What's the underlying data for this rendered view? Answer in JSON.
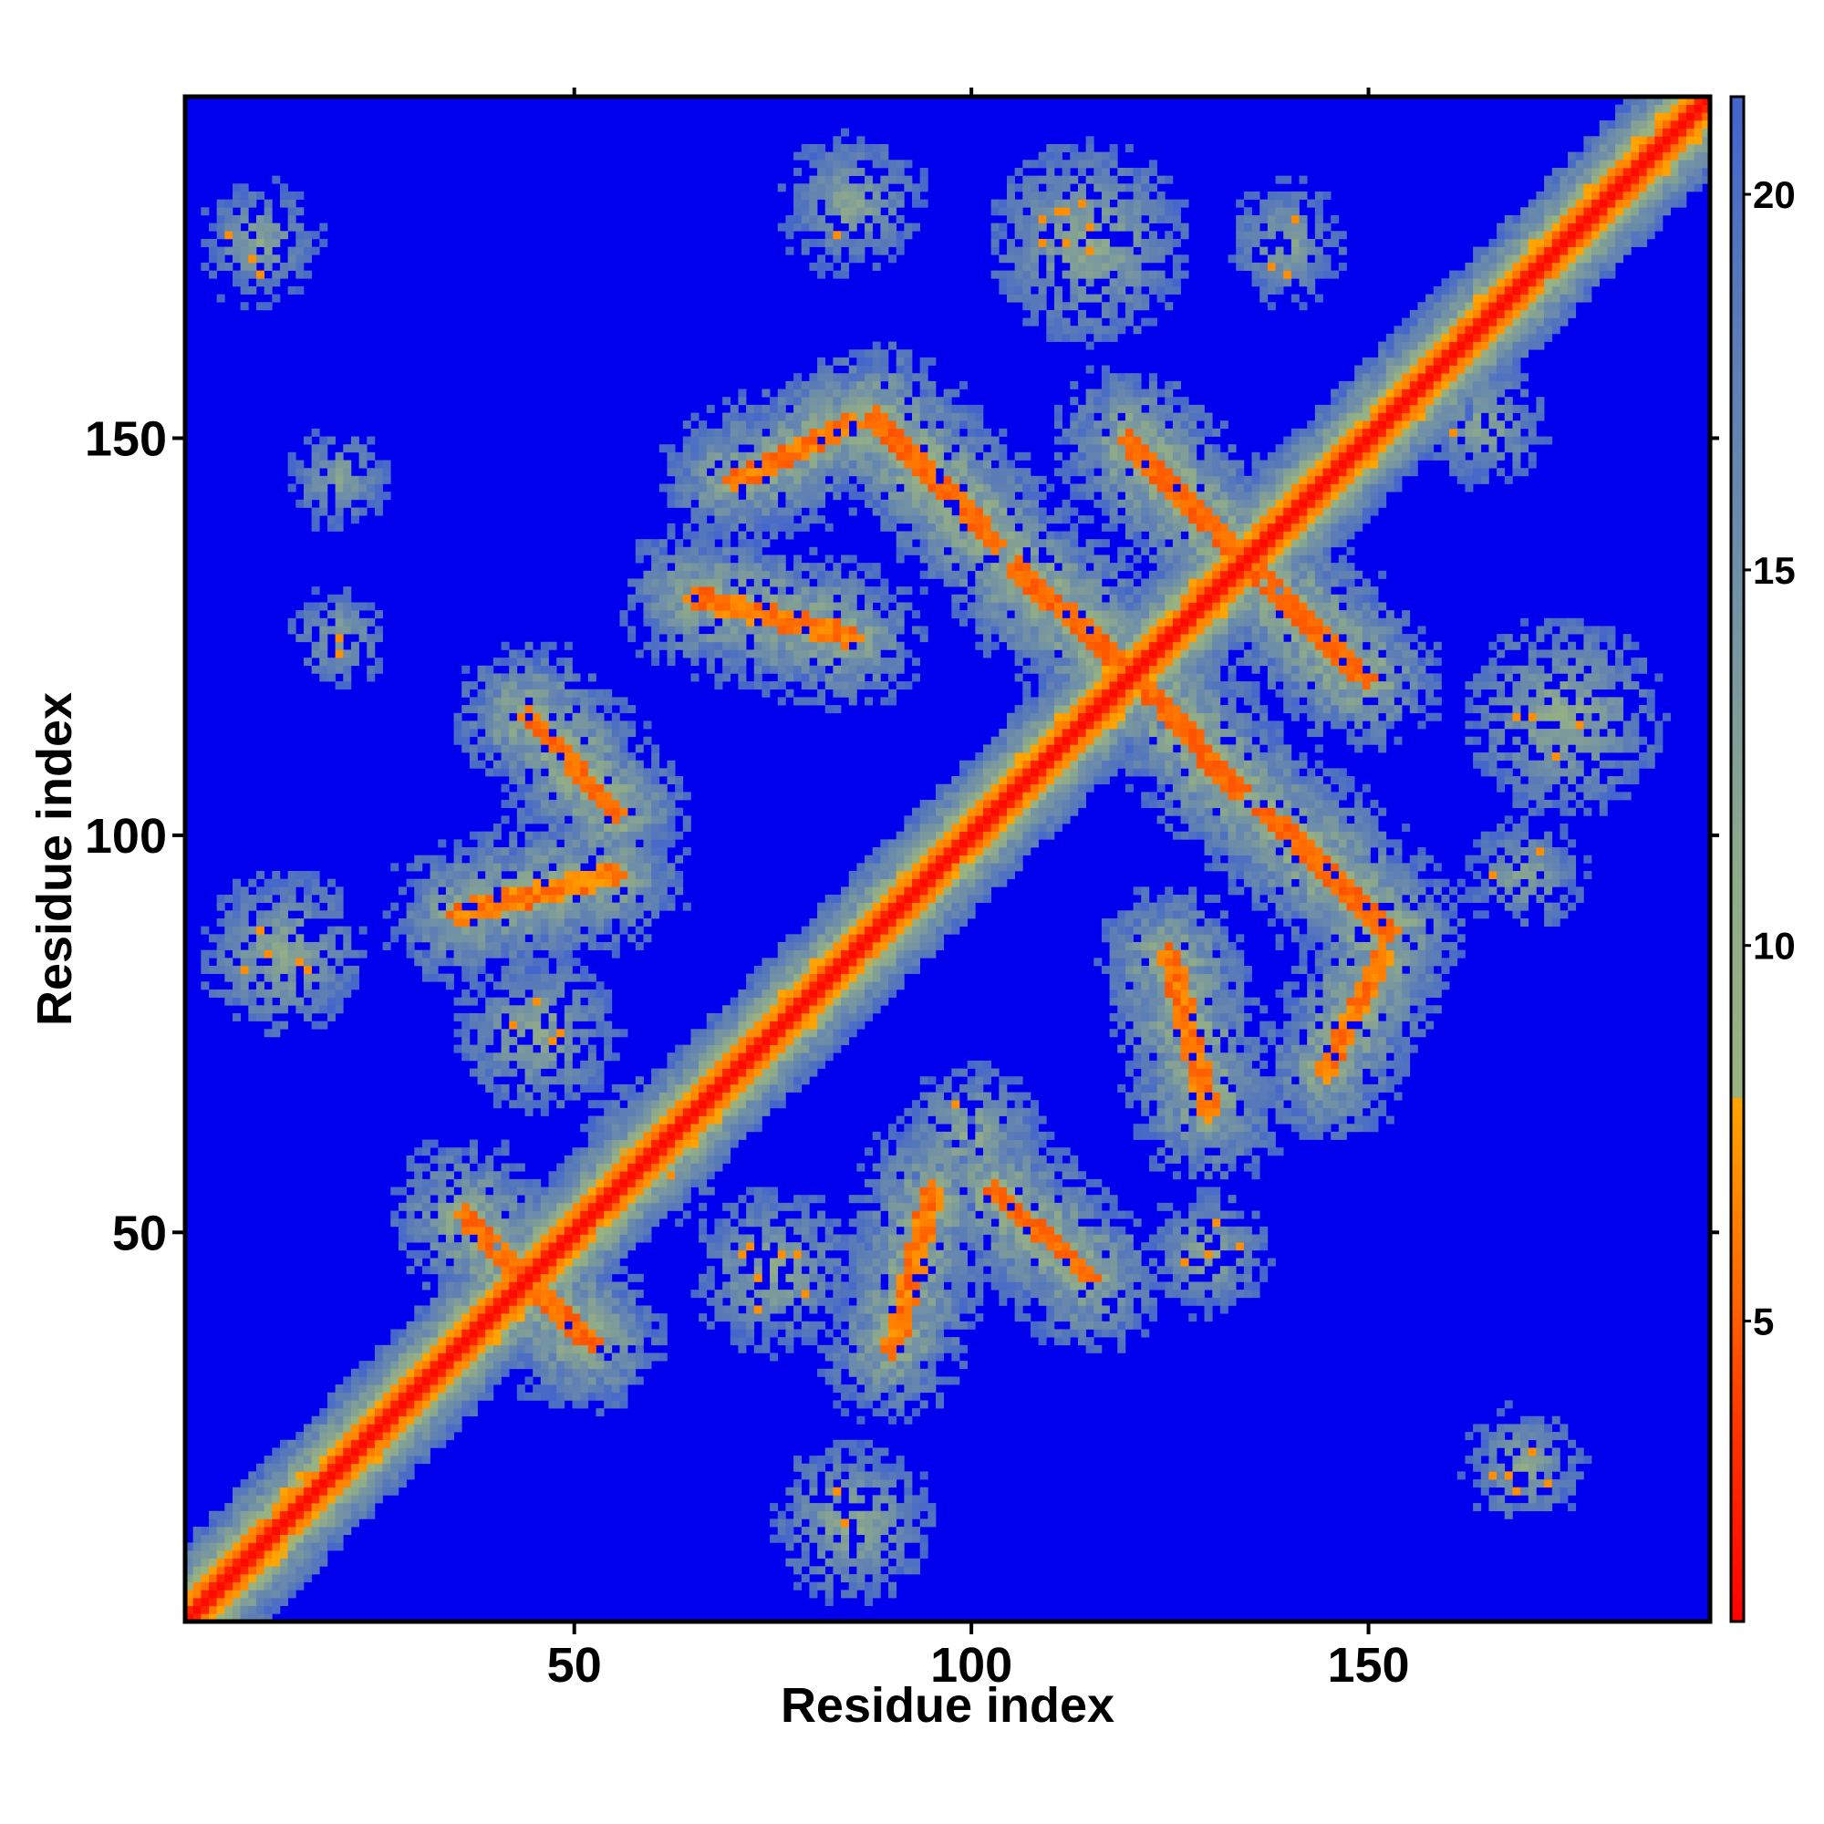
{
  "chart_data": {
    "type": "heatmap",
    "title": "",
    "xlabel": "Residue index",
    "ylabel": "Residue index",
    "n_residues": 193,
    "xlim": [
      1,
      193
    ],
    "ylim": [
      1,
      193
    ],
    "x_ticks": [
      50,
      100,
      150
    ],
    "y_ticks": [
      50,
      100,
      150
    ],
    "colorbar": {
      "range": [
        1,
        21.3
      ],
      "ticks": [
        5,
        10,
        15,
        20
      ],
      "stops": [
        {
          "value": 1,
          "color": "#ff0000"
        },
        {
          "value": 3.5,
          "color": "#ff3300"
        },
        {
          "value": 6,
          "color": "#ff7700"
        },
        {
          "value": 8,
          "color": "#ffa500"
        },
        {
          "value": 8.01,
          "color": "#99b380"
        },
        {
          "value": 11,
          "color": "#8faa8a"
        },
        {
          "value": 15,
          "color": "#6f8fa8"
        },
        {
          "value": 19,
          "color": "#5577bb"
        },
        {
          "value": 21,
          "color": "#4466cc"
        }
      ],
      "background_color": "#0000ee"
    },
    "grid": false,
    "features": {
      "diagonal": {
        "from": 1,
        "to": 193,
        "contact_width": 4
      },
      "contacts": [
        {
          "type": "antiparallel",
          "start": [
            88,
            152
          ],
          "end": [
            103,
            137
          ],
          "strength": 0.9
        },
        {
          "type": "antiparallel",
          "start": [
            121,
            148
          ],
          "end": [
            133,
            137
          ],
          "strength": 0.9
        },
        {
          "type": "antiparallel",
          "start": [
            106,
            134
          ],
          "end": [
            120,
            121
          ],
          "strength": 0.9
        },
        {
          "type": "antiparallel",
          "start": [
            135,
            134
          ],
          "end": [
            150,
            120
          ],
          "strength": 0.9
        },
        {
          "type": "antiparallel",
          "start": [
            120,
            121
          ],
          "end": [
            133,
            106
          ],
          "strength": 0.9
        },
        {
          "type": "antiparallel",
          "start": [
            140,
            101
          ],
          "end": [
            153,
            88
          ],
          "strength": 0.9
        },
        {
          "type": "antiparallel",
          "start": [
            44,
            115
          ],
          "end": [
            55,
            103
          ],
          "strength": 0.85
        },
        {
          "type": "antiparallel",
          "start": [
            103,
            55
          ],
          "end": [
            115,
            44
          ],
          "strength": 0.85
        },
        {
          "type": "antiparallel",
          "start": [
            36,
            52
          ],
          "end": [
            50,
            37
          ],
          "strength": 0.8
        },
        {
          "type": "parallel",
          "start": [
            65,
            130
          ],
          "end": [
            85,
            125
          ],
          "strength": 0.6
        },
        {
          "type": "parallel",
          "start": [
            70,
            145
          ],
          "end": [
            85,
            152
          ],
          "strength": 0.55
        },
        {
          "type": "parallel",
          "start": [
            35,
            90
          ],
          "end": [
            55,
            95
          ],
          "strength": 0.5
        },
        {
          "type": "blob",
          "center": [
            115,
            175
          ],
          "radius": 10,
          "strength": 0.6
        },
        {
          "type": "blob",
          "center": [
            175,
            115
          ],
          "radius": 10,
          "strength": 0.6
        },
        {
          "type": "blob",
          "center": [
            13,
            85
          ],
          "radius": 8,
          "strength": 0.55
        },
        {
          "type": "blob",
          "center": [
            85,
            13
          ],
          "radius": 8,
          "strength": 0.5
        },
        {
          "type": "blob",
          "center": [
            60,
            60
          ],
          "radius": 7,
          "strength": 0.7
        },
        {
          "type": "blob",
          "center": [
            130,
            47
          ],
          "radius": 6,
          "strength": 0.45
        },
        {
          "type": "blob",
          "center": [
            100,
            62
          ],
          "radius": 7,
          "strength": 0.55
        },
        {
          "type": "blob",
          "center": [
            45,
            75
          ],
          "radius": 8,
          "strength": 0.5
        },
        {
          "type": "blob",
          "center": [
            75,
            45
          ],
          "radius": 8,
          "strength": 0.5
        },
        {
          "type": "blob",
          "center": [
            10,
            175
          ],
          "radius": 6,
          "strength": 0.35
        },
        {
          "type": "blob",
          "center": [
            170,
            20
          ],
          "radius": 6,
          "strength": 0.3
        },
        {
          "type": "blob",
          "center": [
            165,
            152
          ],
          "radius": 6,
          "strength": 0.45
        },
        {
          "type": "blob",
          "center": [
            85,
            180
          ],
          "radius": 7,
          "strength": 0.35
        },
        {
          "type": "blob",
          "center": [
            140,
            175
          ],
          "radius": 6,
          "strength": 0.35
        },
        {
          "type": "blob",
          "center": [
            170,
            95
          ],
          "radius": 6,
          "strength": 0.3
        },
        {
          "type": "blob",
          "center": [
            20,
            145
          ],
          "radius": 5,
          "strength": 0.3
        },
        {
          "type": "blob",
          "center": [
            20,
            125
          ],
          "radius": 5,
          "strength": 0.3
        }
      ]
    }
  }
}
